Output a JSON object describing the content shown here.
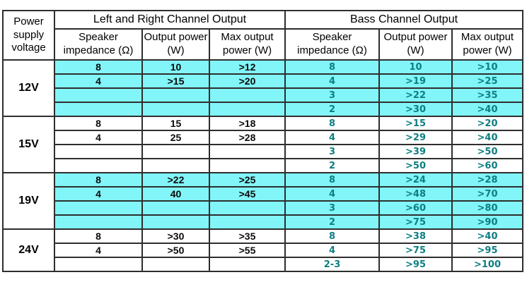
{
  "colors": {
    "highlight": "#82F5F8",
    "bass_text": "#0E7E82",
    "border": "#2E2E2E",
    "lr_text": "#0A0A0A",
    "background": "#FFFFFF"
  },
  "table": {
    "header": {
      "voltage_label": "Power supply voltage",
      "group_left": "Left and Right Channel Output",
      "group_bass": "Bass Channel Output",
      "subheaders": {
        "impedance": "Speaker impedance (Ω)",
        "output": "Output power (W)",
        "max": "Max output power (W)"
      }
    },
    "blocks": [
      {
        "voltage": "12V",
        "highlight": true,
        "rows": [
          {
            "lr": [
              "8",
              "10",
              ">12"
            ],
            "bass": [
              "8",
              "10",
              ">10"
            ]
          },
          {
            "lr": [
              "4",
              ">15",
              ">20"
            ],
            "bass": [
              "4",
              ">19",
              ">25"
            ]
          },
          {
            "lr": [
              "",
              "",
              ""
            ],
            "bass": [
              "3",
              ">22",
              ">35"
            ]
          },
          {
            "lr": [
              "",
              "",
              ""
            ],
            "bass": [
              "2",
              ">30",
              ">40"
            ]
          }
        ]
      },
      {
        "voltage": "15V",
        "highlight": false,
        "rows": [
          {
            "lr": [
              "8",
              "15",
              ">18"
            ],
            "bass": [
              "8",
              ">15",
              ">20"
            ]
          },
          {
            "lr": [
              "4",
              "25",
              ">28"
            ],
            "bass": [
              "4",
              ">29",
              ">40"
            ]
          },
          {
            "lr": [
              "",
              "",
              ""
            ],
            "bass": [
              "3",
              ">39",
              ">50"
            ]
          },
          {
            "lr": [
              "",
              "",
              ""
            ],
            "bass": [
              "2",
              ">50",
              ">60"
            ]
          }
        ]
      },
      {
        "voltage": "19V",
        "highlight": true,
        "rows": [
          {
            "lr": [
              "8",
              ">22",
              ">25"
            ],
            "bass": [
              "8",
              ">24",
              ">28"
            ]
          },
          {
            "lr": [
              "4",
              "40",
              ">45"
            ],
            "bass": [
              "4",
              ">48",
              ">70"
            ]
          },
          {
            "lr": [
              "",
              "",
              ""
            ],
            "bass": [
              "3",
              ">60",
              ">80"
            ]
          },
          {
            "lr": [
              "",
              "",
              ""
            ],
            "bass": [
              "2",
              ">75",
              ">90"
            ]
          }
        ]
      },
      {
        "voltage": "24V",
        "highlight": false,
        "rows": [
          {
            "lr": [
              "8",
              ">30",
              ">35"
            ],
            "bass": [
              "8",
              ">38",
              ">40"
            ]
          },
          {
            "lr": [
              "4",
              ">50",
              ">55"
            ],
            "bass": [
              "4",
              ">75",
              ">95"
            ]
          },
          {
            "lr": [
              "",
              "",
              ""
            ],
            "bass": [
              "2-3",
              ">95",
              ">100"
            ]
          }
        ]
      }
    ]
  }
}
